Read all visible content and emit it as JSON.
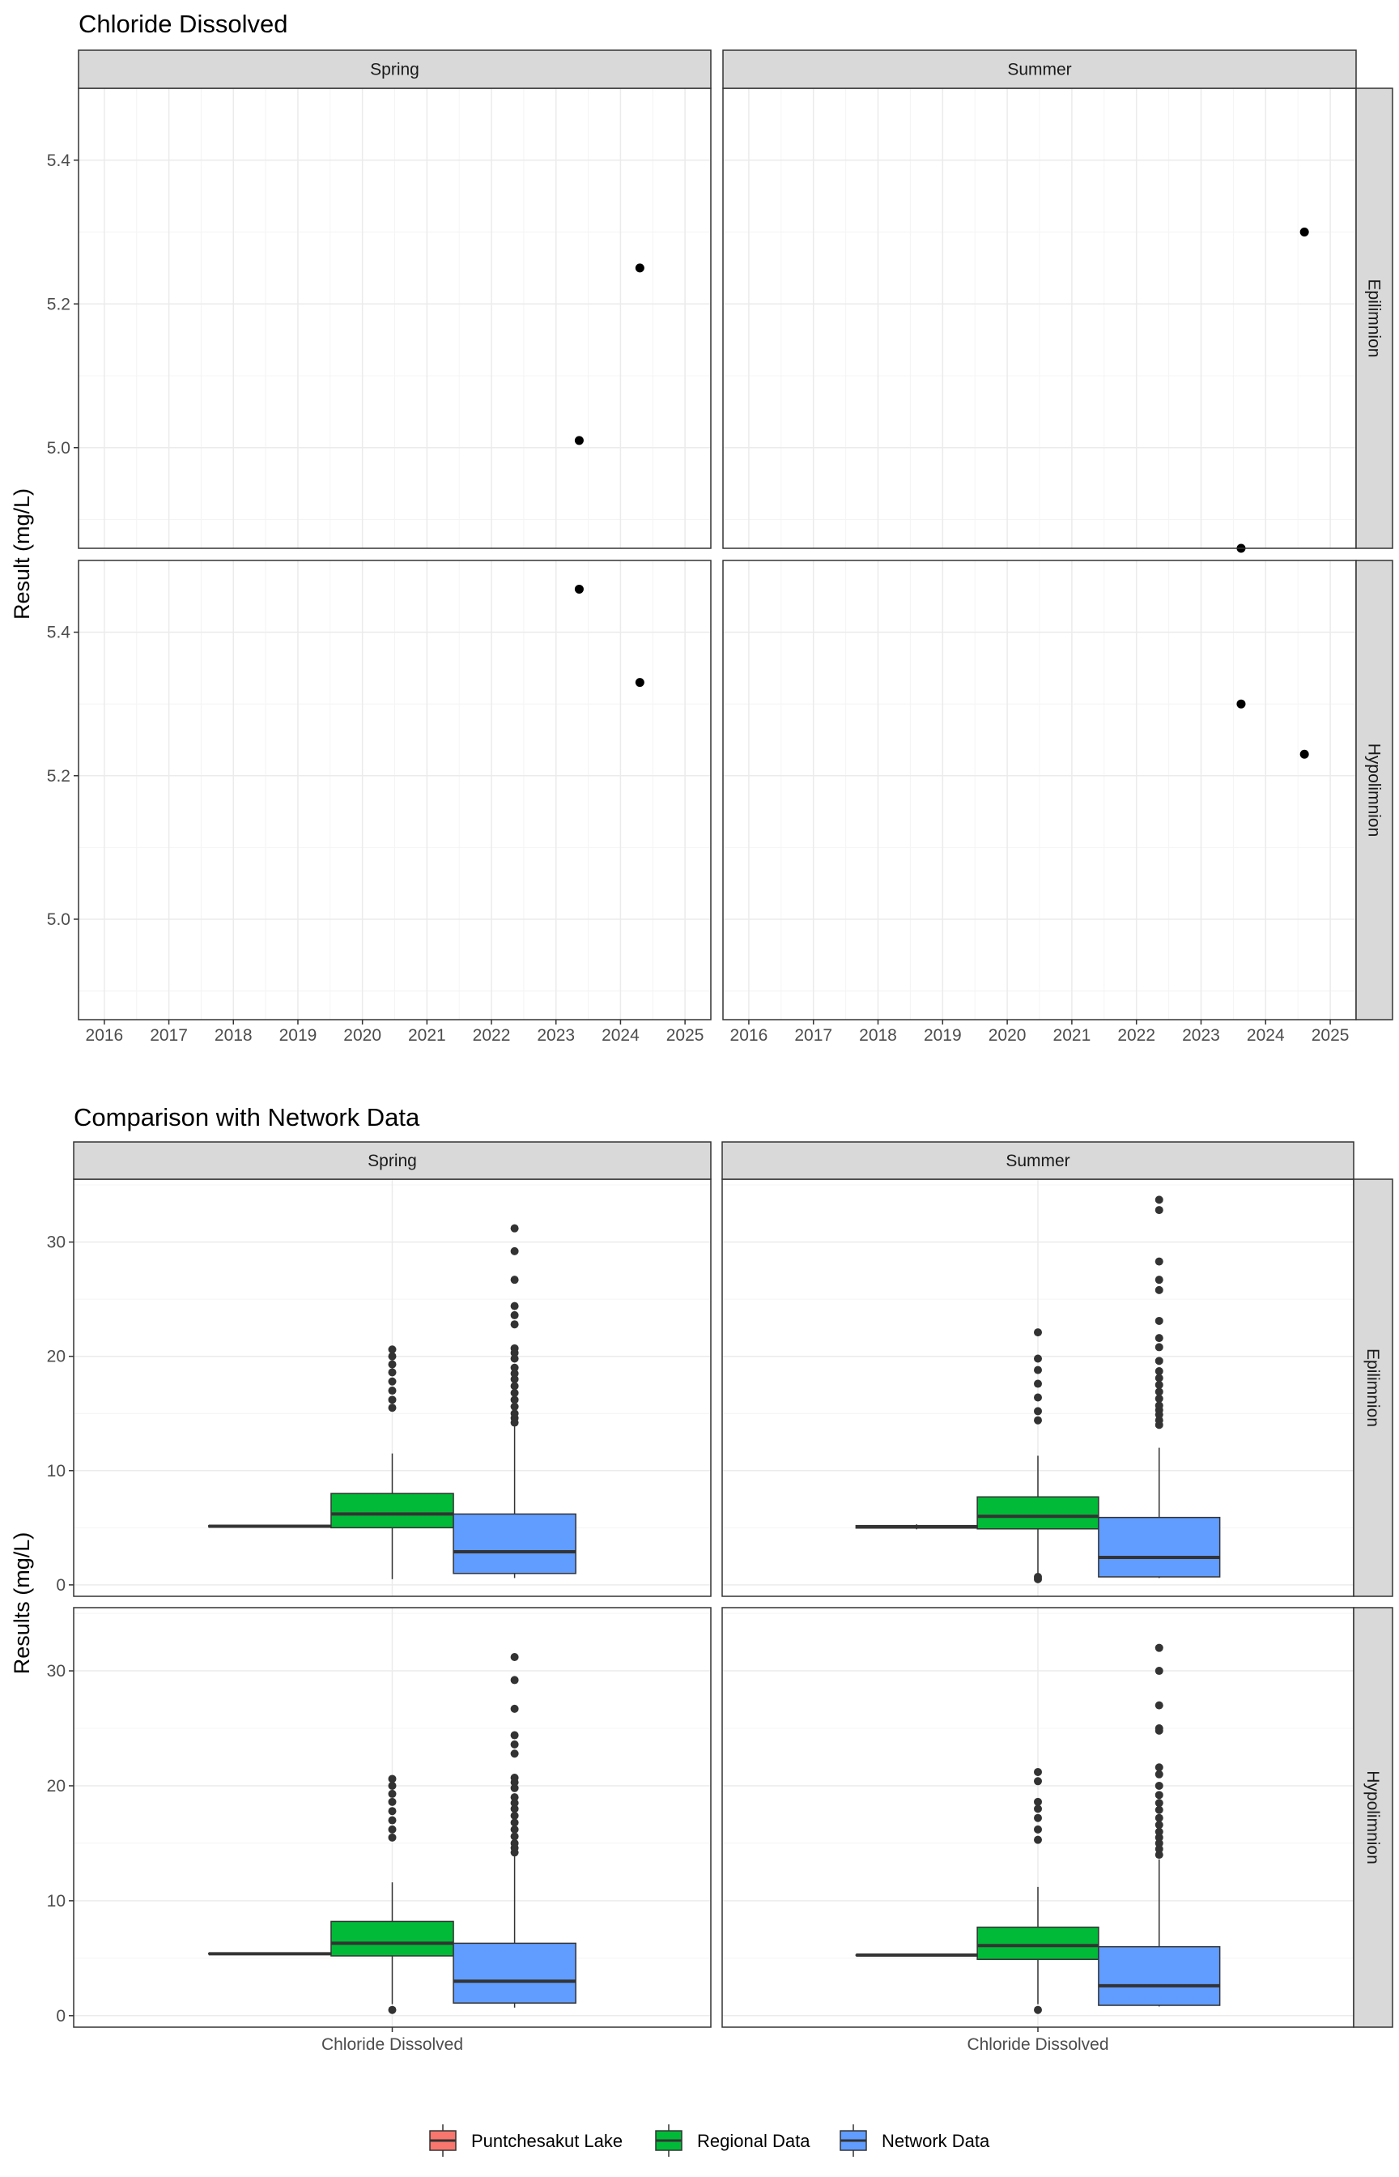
{
  "chart_data": [
    {
      "type": "scatter",
      "title": "Chloride Dissolved",
      "ylabel": "Result (mg/L)",
      "xlabel": "",
      "x_ticks": [
        "2016",
        "2017",
        "2018",
        "2019",
        "2020",
        "2021",
        "2022",
        "2023",
        "2024",
        "2025"
      ],
      "xlim": [
        2015.6,
        2025.4
      ],
      "y_ticks": [
        "5.0",
        "5.2",
        "5.4"
      ],
      "ylim": [
        4.86,
        5.5
      ],
      "grid": true,
      "col_facets": [
        "Spring",
        "Summer"
      ],
      "row_facets": [
        "Epilimnion",
        "Hypolimnion"
      ],
      "panels": [
        {
          "season": "Spring",
          "layer": "Epilimnion",
          "points": [
            {
              "x": 2023.36,
              "y": 5.01
            },
            {
              "x": 2024.3,
              "y": 5.25
            }
          ]
        },
        {
          "season": "Summer",
          "layer": "Epilimnion",
          "points": [
            {
              "x": 2023.62,
              "y": 4.86
            },
            {
              "x": 2024.6,
              "y": 5.3
            }
          ]
        },
        {
          "season": "Spring",
          "layer": "Hypolimnion",
          "points": [
            {
              "x": 2023.36,
              "y": 5.46
            },
            {
              "x": 2024.3,
              "y": 5.33
            }
          ]
        },
        {
          "season": "Summer",
          "layer": "Hypolimnion",
          "points": [
            {
              "x": 2023.62,
              "y": 5.3
            },
            {
              "x": 2024.6,
              "y": 5.23
            }
          ]
        }
      ]
    },
    {
      "type": "box",
      "title": "Comparison with Network Data",
      "ylabel": "Results (mg/L)",
      "xlabel": "",
      "categories": [
        "Chloride Dissolved"
      ],
      "y_ticks": [
        "0",
        "10",
        "20",
        "30"
      ],
      "ylim": [
        -1,
        35.5
      ],
      "grid": true,
      "col_facets": [
        "Spring",
        "Summer"
      ],
      "row_facets": [
        "Epilimnion",
        "Hypolimnion"
      ],
      "legend_position": "bottom",
      "groups": [
        {
          "name": "Puntchesakut Lake",
          "color": "#F8766D"
        },
        {
          "name": "Regional Data",
          "color": "#00BA38"
        },
        {
          "name": "Network Data",
          "color": "#619CFF"
        }
      ],
      "panels": [
        {
          "season": "Spring",
          "layer": "Epilimnion",
          "boxes": [
            {
              "group": "Puntchesakut Lake",
              "min": 5.01,
              "q1": 5.07,
              "median": 5.13,
              "q3": 5.19,
              "max": 5.25,
              "outliers": []
            },
            {
              "group": "Regional Data",
              "min": 0.5,
              "q1": 5.0,
              "median": 6.2,
              "q3": 8.0,
              "max": 11.5,
              "outliers": [
                15.5,
                16.2,
                17.0,
                17.8,
                18.6,
                19.3,
                20.0,
                20.6
              ]
            },
            {
              "group": "Network Data",
              "min": 0.6,
              "q1": 1.0,
              "median": 2.9,
              "q3": 6.2,
              "max": 14.0,
              "outliers": [
                14.2,
                14.6,
                15.0,
                15.6,
                16.2,
                16.8,
                17.4,
                18.0,
                18.5,
                19.0,
                19.8,
                20.3,
                20.7,
                22.8,
                23.6,
                24.4,
                26.7,
                29.2,
                31.2
              ]
            }
          ]
        },
        {
          "season": "Summer",
          "layer": "Epilimnion",
          "boxes": [
            {
              "group": "Puntchesakut Lake",
              "min": 4.86,
              "q1": 4.97,
              "median": 5.08,
              "q3": 5.19,
              "max": 5.3,
              "outliers": []
            },
            {
              "group": "Regional Data",
              "min": 1.0,
              "q1": 4.9,
              "median": 6.0,
              "q3": 7.7,
              "max": 11.3,
              "outliers": [
                0.5,
                0.7,
                14.4,
                15.2,
                16.4,
                17.6,
                18.8,
                19.8,
                22.1
              ]
            },
            {
              "group": "Network Data",
              "min": 0.6,
              "q1": 0.7,
              "median": 2.4,
              "q3": 5.9,
              "max": 12.0,
              "outliers": [
                14.0,
                14.4,
                14.9,
                15.3,
                15.7,
                16.3,
                16.9,
                17.5,
                18.1,
                18.7,
                19.6,
                20.8,
                21.6,
                23.1,
                25.8,
                26.7,
                28.3,
                32.8,
                33.7
              ]
            }
          ]
        },
        {
          "season": "Spring",
          "layer": "Hypolimnion",
          "boxes": [
            {
              "group": "Puntchesakut Lake",
              "min": 5.33,
              "q1": 5.36,
              "median": 5.39,
              "q3": 5.43,
              "max": 5.46,
              "outliers": []
            },
            {
              "group": "Regional Data",
              "min": 1.0,
              "q1": 5.2,
              "median": 6.3,
              "q3": 8.2,
              "max": 11.6,
              "outliers": [
                0.5,
                15.5,
                16.2,
                17.0,
                17.8,
                18.6,
                19.3,
                20.0,
                20.6
              ]
            },
            {
              "group": "Network Data",
              "min": 0.7,
              "q1": 1.1,
              "median": 3.0,
              "q3": 6.3,
              "max": 14.0,
              "outliers": [
                14.2,
                14.6,
                15.0,
                15.6,
                16.2,
                16.8,
                17.4,
                18.0,
                18.5,
                19.0,
                19.8,
                20.3,
                20.7,
                22.8,
                23.6,
                24.4,
                26.7,
                29.2,
                31.2
              ]
            }
          ]
        },
        {
          "season": "Summer",
          "layer": "Hypolimnion",
          "boxes": [
            {
              "group": "Puntchesakut Lake",
              "min": 5.23,
              "q1": 5.25,
              "median": 5.27,
              "q3": 5.28,
              "max": 5.3,
              "outliers": []
            },
            {
              "group": "Regional Data",
              "min": 1.0,
              "q1": 4.9,
              "median": 6.1,
              "q3": 7.7,
              "max": 11.2,
              "outliers": [
                0.5,
                15.3,
                16.2,
                17.2,
                18.0,
                18.6,
                20.4,
                21.2
              ]
            },
            {
              "group": "Network Data",
              "min": 0.8,
              "q1": 0.9,
              "median": 2.6,
              "q3": 6.0,
              "max": 13.6,
              "outliers": [
                14.0,
                14.5,
                15.0,
                15.5,
                16.0,
                16.6,
                17.2,
                17.9,
                18.5,
                19.2,
                20.0,
                21.0,
                21.6,
                24.8,
                25.0,
                27.0,
                30.0,
                32.0
              ]
            }
          ]
        }
      ]
    }
  ]
}
